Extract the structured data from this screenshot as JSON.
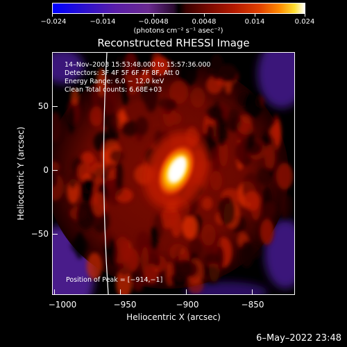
{
  "colorbar": {
    "ticks": [
      "−0.024",
      "−0.014",
      "−0.0048",
      "0.0048",
      "0.014",
      "0.024"
    ],
    "units": "(photons cm⁻² s⁻¹ asec⁻²)"
  },
  "image": {
    "title": "Reconstructed RHESSI Image",
    "annotation": {
      "time": "14–Nov–2003 15:53:48.000 to 15:57:36.000",
      "detectors": "Detectors: 3F 4F 5F 6F 7F 8F, Att 0",
      "energy": "Energy Range: 6.0 − 12.0 keV",
      "method": "Clean     Total counts: 6.68E+03",
      "peak": "Position of Peak = [−914,−1]"
    },
    "xaxis": {
      "label": "Heliocentric X (arcsec)",
      "ticks": [
        "−1000",
        "−950",
        "−900",
        "−850"
      ]
    },
    "yaxis": {
      "label": "Heliocentric Y (arcsec)",
      "ticks": [
        "50",
        "0",
        "−50"
      ]
    },
    "peak_arcsec": [
      -914,
      -1
    ],
    "colors": {
      "bright": "#ffffff",
      "hot": "#ffe030",
      "mid": "#c41a00",
      "negative": "#5a1ea8"
    }
  },
  "footer": {
    "timestamp": "6–May–2022 23:48"
  }
}
